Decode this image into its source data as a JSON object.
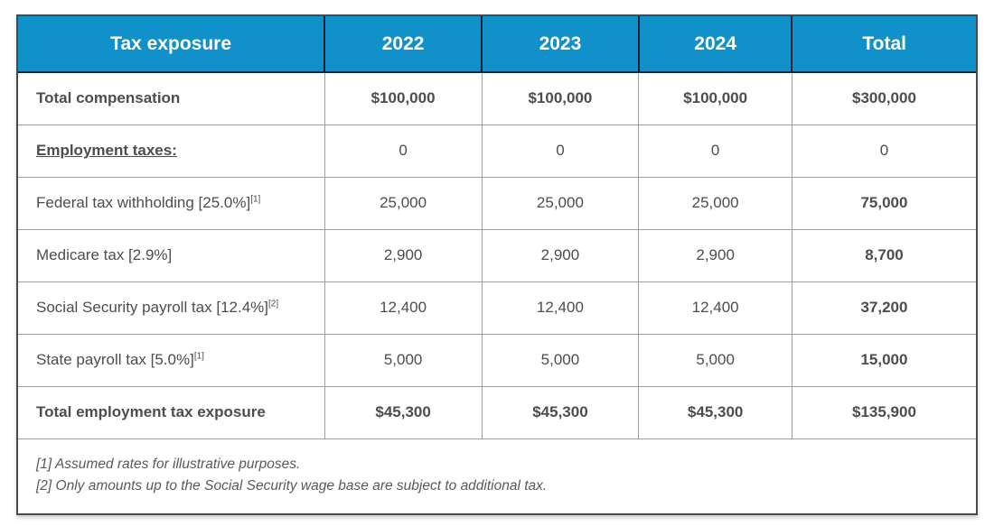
{
  "chart_data": {
    "type": "table",
    "title": "Tax exposure",
    "columns": [
      "2022",
      "2023",
      "2024",
      "Total"
    ],
    "rows": [
      {
        "label": "Total compensation",
        "sup": "",
        "variant": "emphasis",
        "values": [
          "$100,000",
          "$100,000",
          "$100,000",
          "$300,000"
        ]
      },
      {
        "label": "Employment taxes: ",
        "sup": "",
        "variant": "section",
        "values": [
          "0",
          "0",
          "0",
          "0"
        ]
      },
      {
        "label": "Federal tax withholding [25.0%]",
        "sup": "[1]",
        "variant": "item",
        "values": [
          "25,000",
          "25,000",
          "25,000",
          "75,000"
        ]
      },
      {
        "label": "Medicare tax [2.9%]",
        "sup": "",
        "variant": "item",
        "values": [
          "2,900",
          "2,900",
          "2,900",
          "8,700"
        ]
      },
      {
        "label": "Social Security payroll tax [12.4%]",
        "sup": "[2]",
        "variant": "item",
        "values": [
          "12,400",
          "12,400",
          "12,400",
          "37,200"
        ]
      },
      {
        "label": "State payroll tax [5.0%]",
        "sup": "[1]",
        "variant": "item",
        "values": [
          "5,000",
          "5,000",
          "5,000",
          "15,000"
        ]
      },
      {
        "label": "Total employment tax exposure",
        "sup": "",
        "variant": "total",
        "values": [
          "$45,300",
          "$45,300",
          "$45,300",
          "$135,900"
        ]
      }
    ],
    "footnotes": [
      "[1] Assumed rates for illustrative purposes.",
      "[2] Only amounts up to the Social Security wage base are subject to additional tax."
    ]
  },
  "colors": {
    "header_bg": "#1191ca",
    "header_divider": "#0e2430",
    "outer_border": "#4a4a4a",
    "cell_border": "#9e9e9e",
    "header_text": "#ffffff",
    "body_text": "#4d4d4d"
  }
}
